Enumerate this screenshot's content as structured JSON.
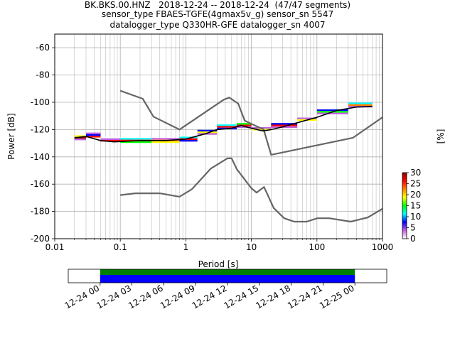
{
  "header": {
    "line1": "BK.BKS.00.HNZ   2018-12-24 -- 2018-12-24  (47/47 segments)",
    "line2": "sensor_type FBAES-TGFE(4gmax5v_g) sensor_sn 5547",
    "line3": "datalogger_type Q330HR-GFE datalogger_sn 4007"
  },
  "chart_data": [
    {
      "type": "heatmap",
      "xlabel": "Period [s]",
      "ylabel": "Power [dB]",
      "xscale": "log",
      "xlim": [
        0.01,
        1000
      ],
      "ylim": [
        -200,
        -50
      ],
      "x_ticks": [
        "0.01",
        "0.1",
        "1",
        "10",
        "100",
        "1000"
      ],
      "y_ticks": [
        "-200",
        "-180",
        "-160",
        "-140",
        "-120",
        "-100",
        "-80",
        "-60"
      ],
      "grid": true,
      "colorbar": {
        "label": "[%]",
        "range": [
          0,
          30
        ],
        "ticks": [
          "0",
          "5",
          "10",
          "15",
          "20",
          "25",
          "30"
        ],
        "colormap": [
          "#ffffff",
          "#c060e0",
          "#0000ff",
          "#00ffff",
          "#00ff00",
          "#ffff00",
          "#ff8000",
          "#ff0000",
          "#8b0000"
        ]
      },
      "series": [
        {
          "name": "",
          "role": "new-high-noise-model",
          "color": "#666666",
          "x": [
            0.1,
            0.22,
            0.32,
            0.8,
            3.8,
            4.6,
            6.3,
            7.9,
            15.4,
            20,
            354.8,
            1000
          ],
          "y": [
            -91.5,
            -97.4,
            -110.5,
            -120,
            -98,
            -96.5,
            -101,
            -113.5,
            -120,
            -138.5,
            -126,
            -111
          ]
        },
        {
          "name": "",
          "role": "new-low-noise-model",
          "color": "#666666",
          "x": [
            0.1,
            0.17,
            0.4,
            0.8,
            1.24,
            2.4,
            4.3,
            5,
            6,
            10,
            12,
            15.6,
            21.9,
            31.6,
            45,
            70,
            101,
            154,
            328,
            600,
            1000
          ],
          "y": [
            -168,
            -166.7,
            -166.7,
            -169.2,
            -163.7,
            -148.6,
            -141.1,
            -141.1,
            -149,
            -163,
            -166.2,
            -162.1,
            -177.5,
            -185,
            -187.5,
            -187.5,
            -185,
            -185,
            -187.5,
            -184.4,
            -178
          ]
        },
        {
          "name": "",
          "role": "mode-curve",
          "color": "#000000",
          "x": [
            0.02,
            0.03,
            0.05,
            0.08,
            0.2,
            0.5,
            1,
            2,
            3,
            5,
            7,
            10,
            15,
            20,
            30,
            50,
            100,
            200,
            400,
            700
          ],
          "y": [
            -126,
            -125,
            -128,
            -129,
            -128,
            -128,
            -127,
            -123,
            -120,
            -119,
            -117,
            -119,
            -121,
            -120,
            -118,
            -115,
            -111,
            -106,
            -103.5,
            -103
          ]
        }
      ],
      "pdf_segments": [
        {
          "x": [
            0.02,
            0.03
          ],
          "y": -126,
          "pct": [
            18,
            30,
            5
          ]
        },
        {
          "x": [
            0.03,
            0.05
          ],
          "y": -124,
          "pct": [
            2,
            6,
            28
          ]
        },
        {
          "x": [
            0.05,
            0.1
          ],
          "y": -127,
          "pct": [
            1,
            5,
            28
          ]
        },
        {
          "x": [
            0.1,
            0.3
          ],
          "y": -128,
          "pct": [
            10,
            28,
            14
          ]
        },
        {
          "x": [
            0.3,
            0.8
          ],
          "y": -128,
          "pct": [
            3,
            24,
            20
          ]
        },
        {
          "x": [
            0.8,
            1.5
          ],
          "y": -127,
          "pct": [
            12,
            28,
            8
          ]
        },
        {
          "x": [
            1.5,
            3
          ],
          "y": -122,
          "pct": [
            8,
            20,
            2
          ]
        },
        {
          "x": [
            3,
            6
          ],
          "y": -118,
          "pct": [
            10,
            27,
            6
          ]
        },
        {
          "x": [
            6,
            10
          ],
          "y": -117,
          "pct": [
            14,
            28,
            4
          ]
        },
        {
          "x": [
            10,
            20
          ],
          "y": -120,
          "pct": [
            2,
            18,
            1
          ]
        },
        {
          "x": [
            20,
            50
          ],
          "y": -117,
          "pct": [
            6,
            26,
            3
          ]
        },
        {
          "x": [
            50,
            100
          ],
          "y": -113,
          "pct": [
            3,
            20,
            1
          ]
        },
        {
          "x": [
            100,
            300
          ],
          "y": -107,
          "pct": [
            8,
            16,
            2
          ]
        },
        {
          "x": [
            300,
            700
          ],
          "y": -102,
          "pct": [
            12,
            24,
            5
          ]
        }
      ]
    },
    {
      "type": "bar",
      "role": "data-coverage",
      "x_ticks": [
        "12-24 00",
        "12-24 03",
        "12-24 06",
        "12-24 09",
        "12-24 12",
        "12-24 15",
        "12-24 18",
        "12-24 21",
        "12-25 00"
      ],
      "xlim": [
        "12-23 21",
        "12-25 03"
      ],
      "series": [
        {
          "name": "",
          "role": "used",
          "color": "#008000",
          "x": [
            "12-24 00",
            "12-25 00"
          ]
        },
        {
          "name": "",
          "role": "available",
          "color": "#0000ff",
          "x": [
            "12-24 00",
            "12-25 00"
          ]
        }
      ]
    }
  ]
}
